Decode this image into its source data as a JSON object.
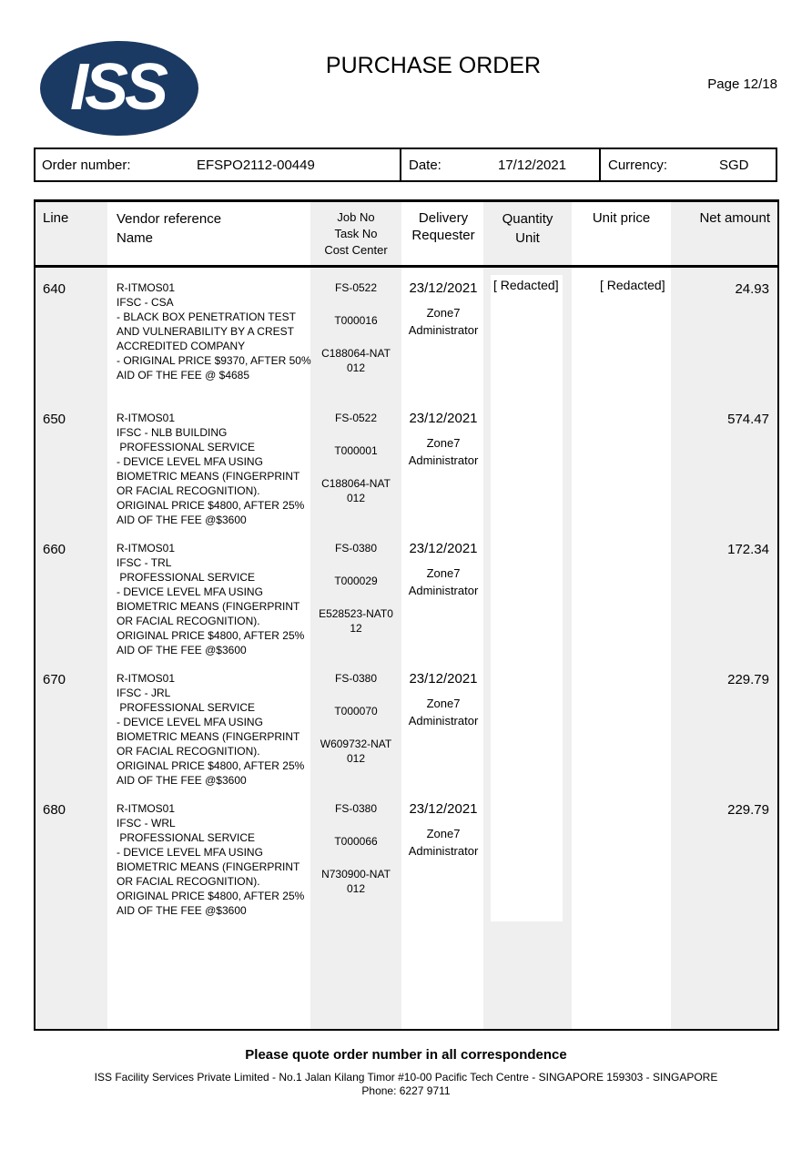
{
  "header": {
    "logo_text": "ISS",
    "title": "PURCHASE ORDER",
    "page": "Page 12/18",
    "brand_color": "#1b3a63"
  },
  "order": {
    "number_label": "Order number:",
    "number": "EFSPO2112-00449",
    "date_label": "Date:",
    "date": "17/12/2021",
    "currency_label": "Currency:",
    "currency": "SGD"
  },
  "table": {
    "headers": {
      "line": "Line",
      "vendor": "Vendor reference\nName",
      "job": "Job No\nTask No\nCost Center",
      "delivery": "Delivery\nRequester",
      "quantity": "Quantity\nUnit",
      "unit_price": "Unit price",
      "net": "Net amount"
    },
    "redacted_qty": "[ Redacted]",
    "redacted_price": "[ Redacted]",
    "rows": [
      {
        "line": "640",
        "vendor": "R-ITMOS01\nIFSC - CSA\n- BLACK BOX PENETRATION TEST\nAND VULNERABILITY BY A CREST\nACCREDITED COMPANY\n- ORIGINAL PRICE $9370, AFTER 50%\nAID OF THE FEE @ $4685",
        "job": "FS-0522",
        "task": "T000016",
        "cost": "C188064-NAT\n012",
        "date": "23/12/2021",
        "requester": "Zone7\nAdministrator",
        "net": "24.93"
      },
      {
        "line": "650",
        "vendor": "R-ITMOS01\nIFSC - NLB BUILDING\n PROFESSIONAL SERVICE\n- DEVICE LEVEL MFA USING\nBIOMETRIC MEANS (FINGERPRINT\nOR FACIAL RECOGNITION).\nORIGINAL PRICE $4800, AFTER 25%\nAID OF THE FEE @$3600",
        "job": "FS-0522",
        "task": "T000001",
        "cost": "C188064-NAT\n012",
        "date": "23/12/2021",
        "requester": "Zone7\nAdministrator",
        "net": "574.47"
      },
      {
        "line": "660",
        "vendor": "R-ITMOS01\nIFSC - TRL\n PROFESSIONAL SERVICE\n- DEVICE LEVEL MFA USING\nBIOMETRIC MEANS (FINGERPRINT\nOR FACIAL RECOGNITION).\nORIGINAL PRICE $4800, AFTER 25%\nAID OF THE FEE @$3600",
        "job": "FS-0380",
        "task": "T000029",
        "cost": "E528523-NAT0\n12",
        "date": "23/12/2021",
        "requester": "Zone7\nAdministrator",
        "net": "172.34"
      },
      {
        "line": "670",
        "vendor": "R-ITMOS01\nIFSC - JRL\n PROFESSIONAL SERVICE\n- DEVICE LEVEL MFA USING\nBIOMETRIC MEANS (FINGERPRINT\nOR FACIAL RECOGNITION).\nORIGINAL PRICE $4800, AFTER 25%\nAID OF THE FEE @$3600",
        "job": "FS-0380",
        "task": "T000070",
        "cost": "W609732-NAT\n012",
        "date": "23/12/2021",
        "requester": "Zone7\nAdministrator",
        "net": "229.79"
      },
      {
        "line": "680",
        "vendor": "R-ITMOS01\nIFSC - WRL\n PROFESSIONAL SERVICE\n- DEVICE LEVEL MFA USING\nBIOMETRIC MEANS (FINGERPRINT\nOR FACIAL RECOGNITION).\nORIGINAL PRICE $4800, AFTER 25%\nAID OF THE FEE @$3600",
        "job": "FS-0380",
        "task": "T000066",
        "cost": "N730900-NAT\n012",
        "date": "23/12/2021",
        "requester": "Zone7\nAdministrator",
        "net": "229.79"
      }
    ]
  },
  "footer": {
    "notice": "Please quote order number in all correspondence",
    "address": "ISS Facility Services Private Limited - No.1 Jalan Kilang Timor #10-00 Pacific Tech Centre - SINGAPORE 159303 - SINGAPORE",
    "phone": "Phone: 6227 9711"
  }
}
